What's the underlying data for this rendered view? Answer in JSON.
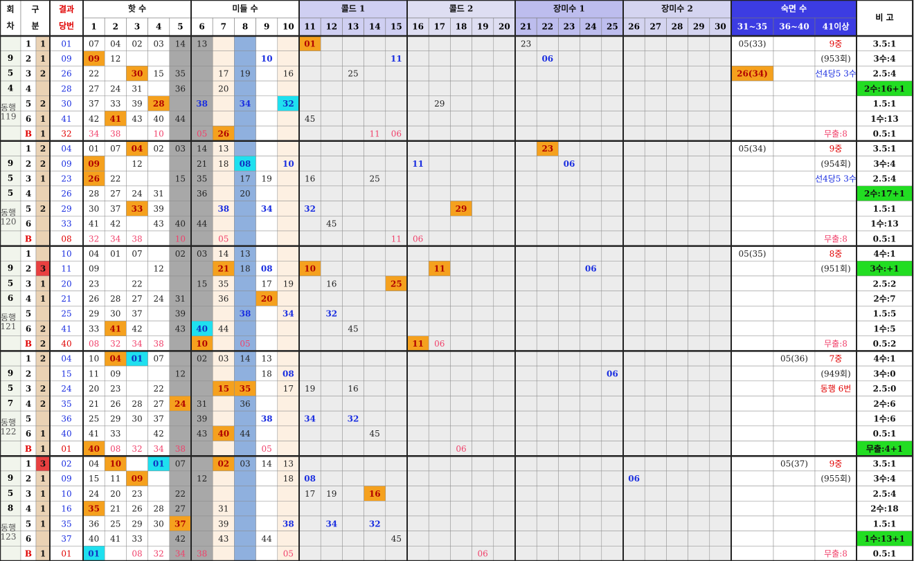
{
  "header": {
    "round": [
      "회",
      "차"
    ],
    "division": [
      "구",
      "분"
    ],
    "result": [
      "결과",
      "당번"
    ],
    "groups": [
      "핫 수",
      "미들 수",
      "콜드 1",
      "콜드 2",
      "장미수 1",
      "장미수 2",
      "숙면 수"
    ],
    "numbers": [
      "1",
      "2",
      "3",
      "4",
      "5",
      "6",
      "7",
      "8",
      "9",
      "10",
      "11",
      "12",
      "13",
      "14",
      "15",
      "16",
      "17",
      "18",
      "19",
      "20",
      "21",
      "22",
      "23",
      "24",
      "25",
      "26",
      "27",
      "28",
      "29",
      "30"
    ],
    "sleep_ranges": [
      "31~35",
      "36~40",
      "41이상"
    ],
    "note": "비 고"
  },
  "blocks": [
    {
      "round": [
        "9",
        "5",
        "4"
      ],
      "companion": [
        "동행",
        "119"
      ],
      "rows": [
        {
          "div": [
            "1",
            "1"
          ],
          "result": "01",
          "cells": {
            "1": "07",
            "2": "04",
            "3": "02",
            "4": "03",
            "5": "14",
            "6": "13",
            "11": {
              "text": "01",
              "style": "orange"
            },
            "21": "23",
            "31": "05(33)",
            "41": {
              "text": "9중",
              "style": "red"
            }
          },
          "note": "3.5:1"
        },
        {
          "div": [
            "2",
            "1"
          ],
          "result": "09",
          "cells": {
            "1": {
              "text": "09",
              "style": "orange"
            },
            "2": "12",
            "9": {
              "text": "10",
              "style": "blue"
            },
            "15": {
              "text": "11",
              "style": "blue"
            },
            "22": {
              "text": "06",
              "style": "blue"
            },
            "41": "(953회)"
          },
          "note": "3수:4"
        },
        {
          "div": [
            "3",
            "2"
          ],
          "result": "26",
          "cells": {
            "1": "22",
            "3": {
              "text": "30",
              "style": "orange"
            },
            "4": "15",
            "5": "35",
            "7": "17",
            "8": "19",
            "10": "16",
            "13": "25",
            "31": {
              "text": "26(34)",
              "style": "orange"
            },
            "41": {
              "text": "선4당5 3수",
              "style": "blue"
            }
          },
          "note": "2.5:4"
        },
        {
          "div": [
            "4",
            null
          ],
          "result": "28",
          "cells": {
            "1": "27",
            "2": "24",
            "3": "31",
            "5": "36",
            "7": "20"
          },
          "note": {
            "text": "2수:16+1",
            "style": "green"
          }
        },
        {
          "div": [
            "5",
            "2"
          ],
          "result": "30",
          "cells": {
            "1": "37",
            "2": "33",
            "3": "39",
            "4": {
              "text": "28",
              "style": "orange"
            },
            "6": {
              "text": "38",
              "style": "blue"
            },
            "8": {
              "text": "34",
              "style": "blue"
            },
            "10": {
              "text": "32",
              "style": "cyan"
            },
            "17": "29"
          },
          "note": "1.5:1"
        },
        {
          "div": [
            "6",
            "1"
          ],
          "result": "41",
          "cells": {
            "1": "42",
            "2": {
              "text": "41",
              "style": "orange"
            },
            "3": "43",
            "4": "40",
            "5": "44",
            "11": "45"
          },
          "note": "1수:13"
        },
        {
          "div": [
            "B",
            "1"
          ],
          "result": "32",
          "cells": {
            "1": "34",
            "2": "38",
            "4": "10",
            "6": "05",
            "7": {
              "text": "26",
              "style": "orange"
            },
            "14": "11",
            "15": "06",
            "41": "무출:8"
          },
          "note": "0.5:1"
        }
      ]
    },
    {
      "round": [
        "9",
        "5",
        "5"
      ],
      "companion": [
        "동행",
        "120"
      ],
      "rows": [
        {
          "div": [
            "1",
            "2"
          ],
          "result": "04",
          "cells": {
            "1": "01",
            "2": "07",
            "3": {
              "text": "04",
              "style": "orange"
            },
            "4": "02",
            "5": "03",
            "6": "14",
            "7": "13",
            "22": {
              "text": "23",
              "style": "orange"
            },
            "31": "05(34)",
            "41": {
              "text": "9중",
              "style": "red"
            }
          },
          "note": "3.5:1"
        },
        {
          "div": [
            "2",
            "2"
          ],
          "result": "09",
          "cells": {
            "1": {
              "text": "09",
              "style": "orange"
            },
            "3": "12",
            "6": "21",
            "7": "18",
            "8": {
              "text": "08",
              "style": "cyan"
            },
            "10": {
              "text": "10",
              "style": "blue"
            },
            "16": {
              "text": "11",
              "style": "blue"
            },
            "23": {
              "text": "06",
              "style": "blue"
            },
            "41": "(954회)"
          },
          "note": "3수:4"
        },
        {
          "div": [
            "3",
            "1"
          ],
          "result": "23",
          "cells": {
            "1": {
              "text": "26",
              "style": "orange"
            },
            "2": "22",
            "5": "15",
            "6": "35",
            "8": "17",
            "9": "19",
            "11": "16",
            "14": "25",
            "41": {
              "text": "선4당5 3수",
              "style": "blue"
            }
          },
          "note": "2.5:4"
        },
        {
          "div": [
            "4",
            null
          ],
          "result": "26",
          "cells": {
            "1": "28",
            "2": "27",
            "3": "24",
            "4": "31",
            "6": "36",
            "8": "20"
          },
          "note": {
            "text": "2수:17+1",
            "style": "green"
          }
        },
        {
          "div": [
            "5",
            "2"
          ],
          "result": "29",
          "cells": {
            "1": "30",
            "2": "37",
            "3": {
              "text": "33",
              "style": "orange"
            },
            "4": "39",
            "7": {
              "text": "38",
              "style": "blue"
            },
            "9": {
              "text": "34",
              "style": "blue"
            },
            "11": {
              "text": "32",
              "style": "blue"
            },
            "18": {
              "text": "29",
              "style": "orange"
            }
          },
          "note": "1.5:1"
        },
        {
          "div": [
            "6",
            null
          ],
          "result": "33",
          "cells": {
            "1": "41",
            "2": "42",
            "4": "43",
            "5": "40",
            "6": "44",
            "12": "45"
          },
          "note": "1수:13"
        },
        {
          "div": [
            "B",
            null
          ],
          "result": "08",
          "cells": {
            "1": "32",
            "2": "34",
            "3": "38",
            "5": "10",
            "7": "05",
            "15": "11",
            "16": "06",
            "41": "무출:8"
          },
          "note": "0.5:1"
        }
      ]
    },
    {
      "round": [
        "9",
        "5",
        "6"
      ],
      "companion": [
        "동행",
        "121"
      ],
      "rows": [
        {
          "div": [
            "1",
            null
          ],
          "result": "10",
          "cells": {
            "1": "04",
            "2": "01",
            "3": "07",
            "5": "02",
            "6": "03",
            "7": "14",
            "8": "13",
            "31": "05(35)",
            "41": {
              "text": "8중",
              "style": "red"
            }
          },
          "note": "4수:1"
        },
        {
          "div": [
            "2",
            "3"
          ],
          "result": "11",
          "cells": {
            "1": "09",
            "4": "12",
            "7": {
              "text": "21",
              "style": "orange"
            },
            "8": "18",
            "9": {
              "text": "08",
              "style": "blue"
            },
            "11": {
              "text": "10",
              "style": "orange"
            },
            "17": {
              "text": "11",
              "style": "orange"
            },
            "24": {
              "text": "06",
              "style": "blue"
            },
            "41": "(951회)"
          },
          "note": {
            "text": "3수:+1",
            "style": "green"
          }
        },
        {
          "div": [
            "3",
            "1"
          ],
          "result": "20",
          "cells": {
            "1": "23",
            "3": "22",
            "6": "15",
            "7": "35",
            "9": "17",
            "10": "19",
            "12": "16",
            "15": {
              "text": "25",
              "style": "orange"
            }
          },
          "note": "2.5:2"
        },
        {
          "div": [
            "4",
            "1"
          ],
          "result": "21",
          "cells": {
            "1": "26",
            "2": "28",
            "3": "27",
            "4": "24",
            "5": "31",
            "7": "36",
            "9": {
              "text": "20",
              "style": "orange"
            }
          },
          "note": "2수:7"
        },
        {
          "div": [
            "5",
            null
          ],
          "result": "25",
          "cells": {
            "1": "29",
            "2": "30",
            "3": "37",
            "5": "39",
            "8": {
              "text": "38",
              "style": "blue"
            },
            "10": {
              "text": "34",
              "style": "blue"
            },
            "12": {
              "text": "32",
              "style": "blue"
            }
          },
          "note": "1.5:5"
        },
        {
          "div": [
            "6",
            "2"
          ],
          "result": "41",
          "cells": {
            "1": "33",
            "2": {
              "text": "41",
              "style": "orange"
            },
            "3": "42",
            "5": "43",
            "6": {
              "text": "40",
              "style": "cyan"
            },
            "7": "44",
            "13": "45"
          },
          "note": "1수:5"
        },
        {
          "div": [
            "B",
            "2"
          ],
          "result": "40",
          "cells": {
            "1": "08",
            "2": "32",
            "3": "34",
            "4": "38",
            "6": {
              "text": "10",
              "style": "orange"
            },
            "8": "05",
            "16": {
              "text": "11",
              "style": "orange"
            },
            "17": "06",
            "41": "무출:8"
          },
          "note": "0.5:2"
        }
      ]
    },
    {
      "round": [
        "9",
        "5",
        "7"
      ],
      "companion": [
        "동행",
        "122"
      ],
      "rows": [
        {
          "div": [
            "1",
            "2"
          ],
          "result": "04",
          "cells": {
            "1": "10",
            "2": {
              "text": "04",
              "style": "orange"
            },
            "3": {
              "text": "01",
              "style": "cyan"
            },
            "4": "07",
            "6": "02",
            "7": "03",
            "8": "14",
            "9": "13",
            "36": "05(36)",
            "41": {
              "text": "7중",
              "style": "red"
            }
          },
          "note": "4수:1"
        },
        {
          "div": [
            "2",
            null
          ],
          "result": "15",
          "cells": {
            "1": "11",
            "2": "09",
            "5": "12",
            "9": "18",
            "10": {
              "text": "08",
              "style": "blue"
            },
            "25": {
              "text": "06",
              "style": "blue"
            },
            "41": "(949회)"
          },
          "note": "3수:0"
        },
        {
          "div": [
            "3",
            "2"
          ],
          "result": "24",
          "cells": {
            "1": "20",
            "2": "23",
            "4": "22",
            "7": {
              "text": "15",
              "style": "orange"
            },
            "8": {
              "text": "35",
              "style": "orange"
            },
            "10": "17",
            "11": "19",
            "13": "16",
            "41": {
              "text": "동행 6번",
              "style": "red"
            }
          },
          "note": "2.5:0"
        },
        {
          "div": [
            "4",
            "2"
          ],
          "result": "35",
          "cells": {
            "1": "21",
            "2": "26",
            "3": "28",
            "4": "27",
            "5": {
              "text": "24",
              "style": "orange"
            },
            "6": "31",
            "8": "36"
          },
          "note": "2수:6"
        },
        {
          "div": [
            "5",
            null
          ],
          "result": "36",
          "cells": {
            "1": "25",
            "2": "29",
            "3": "30",
            "4": "37",
            "6": "39",
            "9": {
              "text": "38",
              "style": "blue"
            },
            "11": {
              "text": "34",
              "style": "blue"
            },
            "13": {
              "text": "32",
              "style": "blue"
            }
          },
          "note": "1수:6"
        },
        {
          "div": [
            "6",
            "1"
          ],
          "result": "40",
          "cells": {
            "1": "41",
            "2": "33",
            "4": "42",
            "6": "43",
            "7": {
              "text": "40",
              "style": "orange"
            },
            "8": "44",
            "14": "45"
          },
          "note": "0.5:1"
        },
        {
          "div": [
            "B",
            "1"
          ],
          "result": "01",
          "cells": {
            "1": {
              "text": "40",
              "style": "orange"
            },
            "2": "08",
            "3": "32",
            "4": "34",
            "5": "38",
            "9": "05",
            "18": "06"
          },
          "note": {
            "text": "무출:4+1",
            "style": "green"
          }
        }
      ]
    },
    {
      "round": [
        "9",
        "5",
        "8"
      ],
      "companion": [
        "동행",
        "123"
      ],
      "rows": [
        {
          "div": [
            "1",
            "3"
          ],
          "result": "02",
          "cells": {
            "1": "04",
            "2": {
              "text": "10",
              "style": "orange"
            },
            "4": {
              "text": "01",
              "style": "cyan"
            },
            "5": "07",
            "7": {
              "text": "02",
              "style": "orange"
            },
            "8": "03",
            "9": "14",
            "10": "13",
            "36": "05(37)",
            "41": {
              "text": "9중",
              "style": "red"
            }
          },
          "note": "3.5:1"
        },
        {
          "div": [
            "2",
            "1"
          ],
          "result": "09",
          "cells": {
            "1": "15",
            "2": "11",
            "3": {
              "text": "09",
              "style": "orange"
            },
            "6": "12",
            "10": "18",
            "11": {
              "text": "08",
              "style": "blue"
            },
            "26": {
              "text": "06",
              "style": "blue"
            },
            "41": "(955회)"
          },
          "note": "3수:4"
        },
        {
          "div": [
            "3",
            "1"
          ],
          "result": "10",
          "cells": {
            "1": "24",
            "2": "20",
            "3": "23",
            "5": "22",
            "11": "17",
            "12": "19",
            "14": {
              "text": "16",
              "style": "orange"
            }
          },
          "note": "2.5:4"
        },
        {
          "div": [
            "4",
            "1"
          ],
          "result": "16",
          "cells": {
            "1": {
              "text": "35",
              "style": "orange"
            },
            "2": "21",
            "3": "26",
            "4": "28",
            "5": "27",
            "7": "31"
          },
          "note": "2수:18"
        },
        {
          "div": [
            "5",
            "1"
          ],
          "result": "35",
          "cells": {
            "1": "36",
            "2": "25",
            "3": "29",
            "4": "30",
            "5": {
              "text": "37",
              "style": "orange"
            },
            "7": "39",
            "10": {
              "text": "38",
              "style": "blue"
            },
            "12": {
              "text": "34",
              "style": "blue"
            },
            "14": {
              "text": "32",
              "style": "blue"
            }
          },
          "note": "1.5:1"
        },
        {
          "div": [
            "6",
            null
          ],
          "result": "37",
          "cells": {
            "1": "40",
            "2": "41",
            "3": "33",
            "5": "42",
            "7": "43",
            "9": "44",
            "15": "45"
          },
          "note": {
            "text": "1수:13+1",
            "style": "green"
          }
        },
        {
          "div": [
            "B",
            "1"
          ],
          "result": "01",
          "cells": {
            "1": {
              "text": "01",
              "style": "cyan"
            },
            "3": "08",
            "4": "32",
            "5": "34",
            "6": "38",
            "10": "05",
            "19": "06",
            "41": "무출:8"
          },
          "note": "0.5:1"
        }
      ]
    }
  ]
}
